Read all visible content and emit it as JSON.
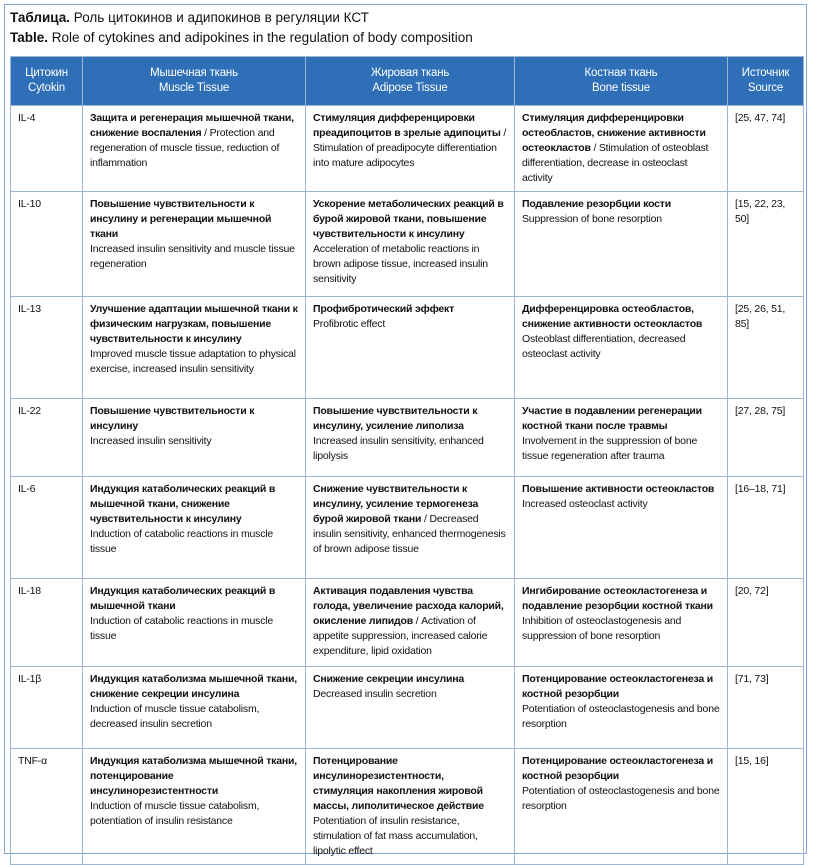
{
  "caption": {
    "ru": {
      "label": "Таблица.",
      "text": "Роль цитокинов и адипокинов в регуляции КСТ"
    },
    "en": {
      "label": "Table.",
      "text": "Role of cytokines and adipokines in the regulation of body composition"
    }
  },
  "table": {
    "header": [
      {
        "ru": "Цитокин",
        "en": "Cytokin"
      },
      {
        "ru": "Мышечная ткань",
        "en": "Muscle Tissue"
      },
      {
        "ru": "Жировая ткань",
        "en": "Adipose Tissue"
      },
      {
        "ru": "Костная ткань",
        "en": "Bone tissue"
      },
      {
        "ru": "Источник",
        "en": "Source"
      }
    ],
    "rows": [
      {
        "cytokine": "IL-4",
        "muscle": {
          "bold": "Защита и регенерация мышечной ткани, снижение воспаления",
          "text": "/ Protection and regeneration of muscle tissue, reduction of inflammation"
        },
        "adipose": {
          "bold": "Стимуляция дифференцировки преадипоцитов в зрелые адипоциты",
          "text": "/ Stimulation of preadipocyte differentiation into mature adipocytes"
        },
        "bone": {
          "bold": "Стимуляция дифференцировки остеобластов, снижение активности остеокластов",
          "text": "/ Stimulation of osteoblast differentiation, decrease in osteoclast activity"
        },
        "source": "[25, 47, 74]"
      },
      {
        "cytokine": "IL-10",
        "muscle": {
          "bold": "Повышение чувствительности к инсулину и регенерации мышечной ткани",
          "text": "Increased insulin sensitivity and muscle tissue regeneration"
        },
        "adipose": {
          "bold": "Ускорение метаболических реакций в бурой жировой ткани, повышение чувствительности к инсулину",
          "text": "Acceleration of metabolic reactions in brown adipose tissue, increased insulin sensitivity"
        },
        "bone": {
          "bold": "Подавление резорбции кости",
          "text": "Suppression of bone resorption"
        },
        "source": "[15, 22, 23, 50]"
      },
      {
        "cytokine": "IL-13",
        "muscle": {
          "bold": "Улучшение адаптации мышечной ткани к физическим нагрузкам, повышение чувствительности к инсулину",
          "text": "Improved muscle tissue adaptation to physical exercise, increased insulin sensitivity"
        },
        "adipose": {
          "bold": "Профибротический эффект",
          "text": "Profibrotic effect"
        },
        "bone": {
          "bold": "Дифференцировка остеобластов, снижение активности остеокластов",
          "text": "Osteoblast differentiation, decreased osteoclast activity"
        },
        "source": "[25, 26, 51, 85]"
      },
      {
        "cytokine": "IL-22",
        "muscle": {
          "bold": "Повышение чувствительности к инсулину",
          "text": "Increased insulin sensitivity"
        },
        "adipose": {
          "bold": "Повышение чувствительности к инсулину, усиление липолиза",
          "text": "Increased insulin sensitivity, enhanced lipolysis"
        },
        "bone": {
          "bold": "Участие в подавлении регенерации костной ткани после травмы",
          "text": "Involvement in the suppression of bone tissue regeneration after trauma"
        },
        "source": "[27, 28, 75]"
      },
      {
        "cytokine": "IL-6",
        "muscle": {
          "bold": "Индукция катаболических реакций в мышечной ткани, снижение чувствительности к инсулину",
          "text": "Induction of catabolic reactions in muscle tissue"
        },
        "adipose": {
          "bold": "Снижение чувствительности к инсулину, усиление термогенеза бурой жировой ткани",
          "text": "/ Decreased insulin sensitivity, enhanced thermogenesis of brown adipose tissue"
        },
        "bone": {
          "bold": "Повышение активности остеокластов",
          "text": "Increased osteoclast activity"
        },
        "source": "[16–18, 71]"
      },
      {
        "cytokine": "IL-18",
        "muscle": {
          "bold": "Индукция катаболических реакций в мышечной ткани",
          "text": "Induction of catabolic reactions in muscle tissue"
        },
        "adipose": {
          "bold": "Активация подавления чувства голода, увеличение расхода калорий, окисление липидов",
          "text": "/ Activation of appetite suppression, increased calorie expenditure, lipid oxidation"
        },
        "bone": {
          "bold": "Ингибирование остеокластогенеза и подавление резорбции костной ткани",
          "text": "Inhibition of osteoclastogenesis and suppression of bone resorption"
        },
        "source": "[20, 72]"
      },
      {
        "cytokine": "IL-1β",
        "muscle": {
          "bold": "Индукция катаболизма мышечной ткани, снижение секреции инсулина",
          "text": "Induction of muscle tissue catabolism, decreased insulin secretion"
        },
        "adipose": {
          "bold": "Снижение секреции инсулина",
          "text": "Decreased insulin secretion"
        },
        "bone": {
          "bold": "Потенцирование остеокластогенеза и костной резорбции",
          "text": "Potentiation of osteoclastogenesis and bone resorption"
        },
        "source": "[71, 73]"
      },
      {
        "cytokine": "TNF-α",
        "muscle": {
          "bold": "Индукция катаболизма мышечной ткани, потенцирование инсулинорезистентности",
          "text": "Induction of muscle tissue catabolism, potentiation of insulin resistance"
        },
        "adipose": {
          "bold": "Потенцирование инсулинорезистентности, стимуляция накопления жировой массы, липолитическое действие",
          "text": "Potentiation of insulin resistance, stimulation of fat mass accumulation, lipolytic effect"
        },
        "bone": {
          "bold": "Потенцирование остеокластогенеза и костной резорбции",
          "text": "Potentiation of osteoclastogenesis and bone resorption"
        },
        "source": "[15, 16]"
      }
    ]
  }
}
